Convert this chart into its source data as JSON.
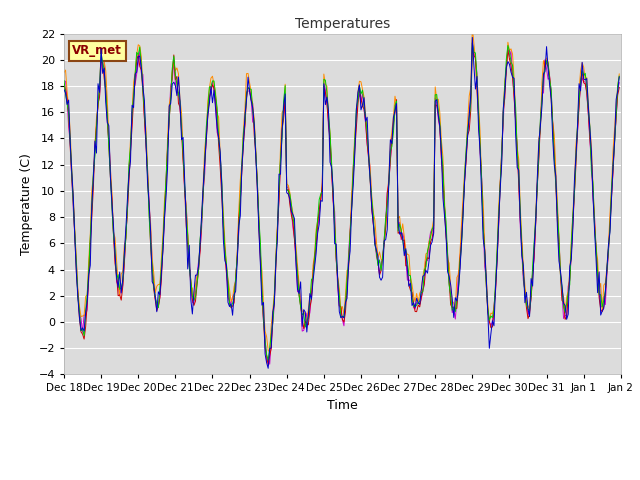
{
  "title": "Temperatures",
  "xlabel": "Time",
  "ylabel": "Temperature (C)",
  "ylim": [
    -4,
    22
  ],
  "yticks": [
    -4,
    -2,
    0,
    2,
    4,
    6,
    8,
    10,
    12,
    14,
    16,
    18,
    20,
    22
  ],
  "bg_color": "#dcdcdc",
  "fig_color": "#ffffff",
  "annotation_text": "VR_met",
  "annotation_color": "#8b0000",
  "annotation_bg": "#ffffa0",
  "annotation_border": "#8b4513",
  "series_colors": {
    "Panel T": "#cc0000",
    "Old Ref Temp": "#ff8c00",
    "AM25T Ref": "#00cc00",
    "HMP45 T": "#0000cc",
    "CNR1 PRT": "#cc00cc"
  },
  "date_labels": [
    "Dec 18",
    "Dec 19",
    "Dec 20",
    "Dec 21",
    "Dec 22",
    "Dec 23",
    "Dec 24",
    "Dec 25",
    "Dec 26",
    "Dec 27",
    "Dec 28",
    "Dec 29",
    "Dec 30",
    "Dec 31",
    "Jan 1",
    "Jan 2"
  ],
  "n_days": 15,
  "seed": 42,
  "daily_peaks": [
    18,
    20,
    20.3,
    18.5,
    18,
    17.5,
    10,
    18,
    17,
    7,
    16.8,
    21,
    20,
    19.5,
    18.5,
    17
  ],
  "daily_troughs": [
    -1,
    2,
    1,
    1.5,
    1,
    -3,
    -0.5,
    0,
    4,
    1,
    0.5,
    -0.5,
    0.5,
    0.5,
    1,
    2
  ]
}
